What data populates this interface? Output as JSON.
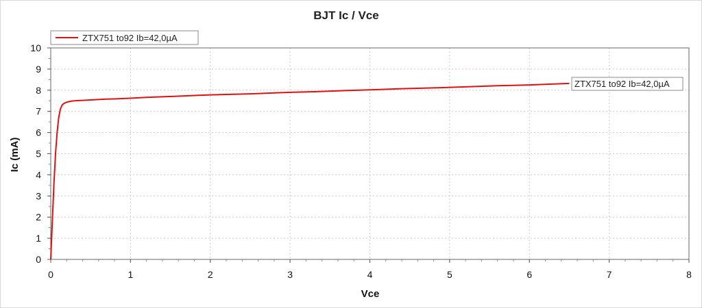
{
  "chart_data": {
    "type": "line",
    "title": "BJT Ic / Vce",
    "xlabel": "Vce",
    "ylabel": "Ic (mA)",
    "xlim": [
      0,
      8
    ],
    "ylim": [
      0,
      10
    ],
    "x_ticks": [
      "0",
      "1",
      "2",
      "3",
      "4",
      "5",
      "6",
      "7",
      "8"
    ],
    "y_ticks": [
      "0",
      "1",
      "2",
      "3",
      "4",
      "5",
      "6",
      "7",
      "8",
      "9",
      "10"
    ],
    "grid": true,
    "legend_position": "top-left",
    "series": [
      {
        "name": "ZTX751 to92 Ib=42,0µA",
        "color": "#e01010",
        "x": [
          0,
          0.02,
          0.04,
          0.06,
          0.08,
          0.1,
          0.12,
          0.14,
          0.16,
          0.18,
          0.2,
          0.25,
          0.3,
          0.4,
          0.5,
          0.6,
          0.7,
          0.8,
          1.0,
          1.2,
          1.4,
          1.6,
          1.8,
          2.0,
          2.2,
          2.5,
          2.8,
          3.0,
          3.3,
          3.6,
          4.0,
          4.4,
          4.8,
          5.2,
          5.6,
          6.0,
          6.3,
          6.5
        ],
        "y": [
          0,
          1.8,
          3.6,
          5.0,
          6.0,
          6.7,
          7.1,
          7.28,
          7.36,
          7.4,
          7.43,
          7.48,
          7.5,
          7.52,
          7.54,
          7.56,
          7.58,
          7.59,
          7.62,
          7.66,
          7.69,
          7.72,
          7.75,
          7.78,
          7.8,
          7.83,
          7.87,
          7.9,
          7.93,
          7.97,
          8.02,
          8.07,
          8.11,
          8.16,
          8.21,
          8.25,
          8.29,
          8.32
        ]
      }
    ],
    "end_label": "ZTX751 to92 Ib=42,0µA"
  }
}
